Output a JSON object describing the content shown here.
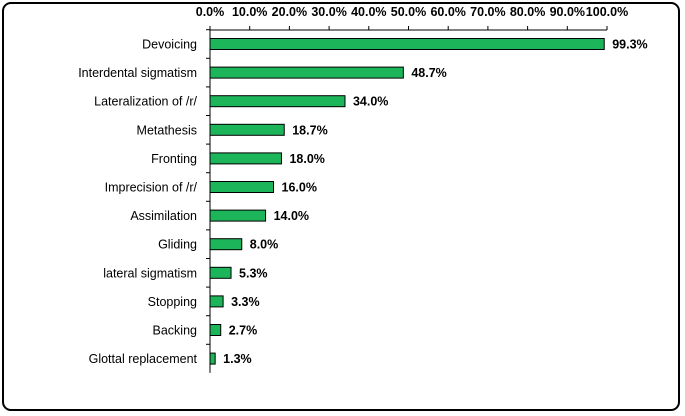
{
  "chart_data": {
    "type": "bar",
    "orientation": "horizontal",
    "categories": [
      "Devoicing",
      "Interdental sigmatism",
      "Lateralization of /r/",
      "Metathesis",
      "Fronting",
      "Imprecision of /r/",
      "Assimilation",
      "Gliding",
      "lateral sigmatism",
      "Stopping",
      "Backing",
      "Glottal replacement"
    ],
    "values": [
      99.3,
      48.7,
      34.0,
      18.7,
      18.0,
      16.0,
      14.0,
      8.0,
      5.3,
      3.3,
      2.7,
      1.3
    ],
    "data_labels": [
      "99.3%",
      "48.7%",
      "34.0%",
      "18.7%",
      "18.0%",
      "16.0%",
      "14.0%",
      "8.0%",
      "5.3%",
      "3.3%",
      "2.7%",
      "1.3%"
    ],
    "xlim": [
      0,
      100
    ],
    "x_ticks": [
      "0.0%",
      "10.0%",
      "20.0%",
      "30.0%",
      "40.0%",
      "50.0%",
      "60.0%",
      "70.0%",
      "80.0%",
      "90.0%",
      "100.0%"
    ],
    "x_axis_position": "top",
    "grid": false,
    "legend": "none",
    "title": "",
    "xlabel": "",
    "ylabel": "",
    "colors": {
      "bar_fill": "#1db55a",
      "bar_stroke": "#000000"
    }
  }
}
